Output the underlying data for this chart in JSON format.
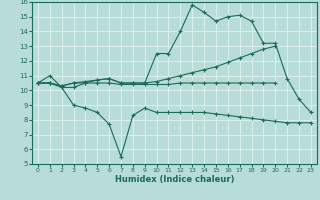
{
  "xlabel": "Humidex (Indice chaleur)",
  "bg_color": "#b8ddd8",
  "grid_color": "#d8eeea",
  "line_color": "#1a6b5a",
  "line1_x": [
    0,
    1,
    2,
    3,
    4,
    5,
    6,
    7,
    8,
    9,
    10,
    11,
    12,
    13,
    14,
    15,
    16,
    17,
    18,
    19,
    20,
    21,
    22,
    23
  ],
  "line1_y": [
    10.5,
    11.0,
    10.2,
    10.2,
    10.5,
    10.7,
    10.8,
    10.5,
    10.5,
    10.5,
    12.5,
    12.5,
    14.0,
    15.8,
    15.3,
    14.7,
    15.0,
    15.1,
    14.7,
    13.2,
    13.2,
    10.8,
    9.4,
    8.5
  ],
  "line2_x": [
    0,
    1,
    2,
    3,
    4,
    5,
    6,
    7,
    8,
    9,
    10,
    11,
    12,
    13,
    14,
    15,
    16,
    17,
    18,
    19,
    20
  ],
  "line2_y": [
    10.5,
    10.5,
    10.3,
    10.5,
    10.6,
    10.7,
    10.8,
    10.5,
    10.5,
    10.5,
    10.6,
    10.8,
    11.0,
    11.2,
    11.4,
    11.6,
    11.9,
    12.2,
    12.5,
    12.8,
    13.0
  ],
  "line3_x": [
    0,
    1,
    2,
    3,
    4,
    5,
    6,
    7,
    8,
    9,
    10,
    11,
    12,
    13,
    14,
    15,
    16,
    17,
    18,
    19,
    20,
    21,
    22,
    23
  ],
  "line3_y": [
    10.5,
    10.5,
    10.2,
    9.0,
    8.8,
    8.5,
    7.7,
    5.5,
    8.3,
    8.8,
    8.5,
    8.5,
    8.5,
    8.5,
    8.5,
    8.4,
    8.3,
    8.2,
    8.1,
    8.0,
    7.9,
    7.8,
    7.8,
    7.8
  ],
  "line4_x": [
    0,
    1,
    2,
    3,
    4,
    5,
    6,
    7,
    8,
    9,
    10,
    11,
    12,
    13,
    14,
    15,
    16,
    17,
    18,
    19,
    20
  ],
  "line4_y": [
    10.5,
    10.5,
    10.3,
    10.5,
    10.5,
    10.5,
    10.5,
    10.4,
    10.4,
    10.4,
    10.4,
    10.4,
    10.5,
    10.5,
    10.5,
    10.5,
    10.5,
    10.5,
    10.5,
    10.5,
    10.5
  ],
  "ylim": [
    5,
    16
  ],
  "xlim": [
    -0.5,
    23.5
  ],
  "yticks": [
    5,
    6,
    7,
    8,
    9,
    10,
    11,
    12,
    13,
    14,
    15,
    16
  ],
  "xticks": [
    0,
    1,
    2,
    3,
    4,
    5,
    6,
    7,
    8,
    9,
    10,
    11,
    12,
    13,
    14,
    15,
    16,
    17,
    18,
    19,
    20,
    21,
    22,
    23
  ]
}
